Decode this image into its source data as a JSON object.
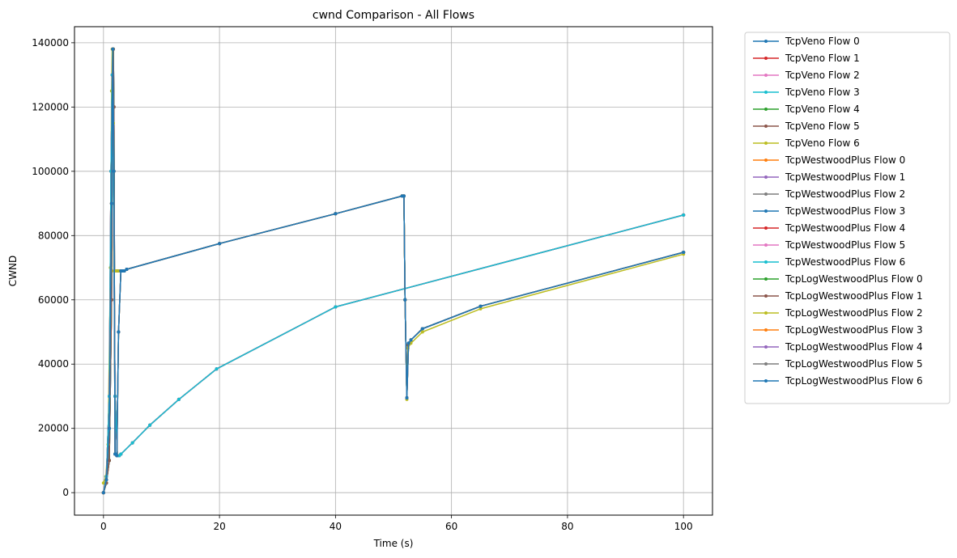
{
  "chart_data": {
    "type": "line",
    "title": "cwnd Comparison - All Flows",
    "xlabel": "Time (s)",
    "ylabel": "CWND",
    "xlim": [
      -5,
      105
    ],
    "ylim": [
      -7000,
      145000
    ],
    "xticks": [
      0,
      20,
      40,
      60,
      80,
      100
    ],
    "yticks": [
      0,
      20000,
      40000,
      60000,
      80000,
      100000,
      120000,
      140000
    ],
    "xtick_labels": [
      "0",
      "20",
      "40",
      "60",
      "80",
      "100"
    ],
    "ytick_labels": [
      "0",
      "20000",
      "40000",
      "60000",
      "80000",
      "100000",
      "120000",
      "140000"
    ],
    "grid": true,
    "legend_position": "outside-right",
    "series": [
      {
        "name": "TcpVeno Flow 0",
        "color": "#1f77b4",
        "x": [
          0,
          0.5,
          1.0,
          1.4,
          1.5,
          1.6,
          1.7,
          1.8,
          1.9,
          2.0,
          2.2,
          2.6,
          3.0,
          3.5,
          4.0,
          20,
          40,
          51.5,
          51.8,
          52.0,
          52.3,
          52.5,
          53,
          55,
          65,
          100
        ],
        "y": [
          0,
          3000,
          10000,
          60000,
          110000,
          138000,
          138000,
          120000,
          69000,
          69000,
          69000,
          69000,
          69000,
          69000,
          69500,
          77500,
          86800,
          92300,
          92300,
          60000,
          29500,
          46000,
          47500,
          51000,
          58000,
          74800
        ]
      },
      {
        "name": "TcpVeno Flow 1",
        "color": "#d62728",
        "x": [
          0,
          0.5,
          1.0,
          1.4,
          1.5,
          1.6,
          1.7,
          1.8,
          1.9,
          2.0,
          2.2,
          2.6,
          3.0,
          3.5,
          4.0,
          20,
          40,
          51.5,
          51.8,
          52.0,
          52.3,
          52.5,
          53,
          55,
          65,
          100
        ],
        "y": [
          0,
          3000,
          10000,
          60000,
          110000,
          138000,
          138000,
          120000,
          69000,
          69000,
          69000,
          69000,
          69000,
          69000,
          69500,
          77500,
          86800,
          92300,
          92300,
          60000,
          29500,
          46000,
          47500,
          51000,
          58000,
          74800
        ]
      },
      {
        "name": "TcpVeno Flow 2",
        "color": "#e377c2",
        "x": [
          0,
          0.5,
          1.0,
          1.4,
          1.5,
          1.6,
          1.7,
          1.8,
          1.9,
          2.0,
          2.2,
          2.6,
          3.0,
          3.5,
          4.0,
          20,
          40,
          51.5,
          51.8,
          52.0,
          52.3,
          52.5,
          53,
          55,
          65,
          100
        ],
        "y": [
          0,
          3000,
          10000,
          60000,
          110000,
          138000,
          138000,
          120000,
          69000,
          69000,
          69000,
          69000,
          69000,
          69000,
          69500,
          77500,
          86800,
          92300,
          92300,
          60000,
          29500,
          46000,
          47500,
          51000,
          58000,
          74800
        ]
      },
      {
        "name": "TcpVeno Flow 3",
        "color": "#17becf",
        "x": [
          0,
          0.5,
          1.0,
          1.4,
          1.5,
          1.6,
          1.7,
          1.8,
          1.9,
          2.0,
          2.2,
          2.6,
          3.0,
          3.5,
          4.0,
          20,
          40,
          51.5,
          51.8,
          52.0,
          52.3,
          52.5,
          53,
          55,
          65,
          100
        ],
        "y": [
          0,
          3000,
          10000,
          60000,
          110000,
          138000,
          138000,
          120000,
          69000,
          69000,
          69000,
          69000,
          69000,
          69000,
          69500,
          77500,
          86800,
          92300,
          92300,
          60000,
          29500,
          46000,
          47500,
          51000,
          58000,
          74800
        ]
      },
      {
        "name": "TcpVeno Flow 4",
        "color": "#2ca02c",
        "x": [
          0,
          0.5,
          1.0,
          1.4,
          1.5,
          1.6,
          1.7,
          1.8,
          1.9,
          2.0,
          2.2,
          2.6,
          3.0,
          3.5,
          4.0,
          20,
          40,
          51.5,
          51.8,
          52.0,
          52.3,
          52.5,
          53,
          55,
          65,
          100
        ],
        "y": [
          0,
          3000,
          10000,
          60000,
          110000,
          138000,
          138000,
          120000,
          69000,
          69000,
          69000,
          69000,
          69000,
          69000,
          69500,
          77500,
          86800,
          92300,
          92300,
          60000,
          29500,
          46000,
          47500,
          51000,
          58000,
          74800
        ]
      },
      {
        "name": "TcpVeno Flow 5",
        "color": "#8c564b",
        "x": [
          0,
          0.5,
          1.0,
          1.4,
          1.5,
          1.6,
          1.7,
          1.8,
          1.9,
          2.0,
          2.2,
          2.6,
          3.0,
          3.5,
          4.0,
          20,
          40,
          51.5,
          51.8,
          52.0,
          52.3,
          52.5,
          53,
          55,
          65,
          100
        ],
        "y": [
          0,
          3000,
          10000,
          60000,
          110000,
          138000,
          138000,
          120000,
          69000,
          69000,
          69000,
          69000,
          69000,
          69000,
          69500,
          77500,
          86800,
          92300,
          92300,
          60000,
          29500,
          46000,
          47500,
          51000,
          58000,
          74800
        ]
      },
      {
        "name": "TcpVeno Flow 6",
        "color": "#bcbd22",
        "x": [
          0,
          0.4,
          0.8,
          1.2,
          1.4,
          1.5,
          1.6,
          1.7,
          1.8,
          1.9,
          2.2,
          2.6,
          3.0,
          3.5,
          4.0,
          20,
          40,
          51.5,
          51.8,
          52.0,
          52.3,
          52.5,
          53,
          55,
          65,
          100
        ],
        "y": [
          3000,
          5000,
          15000,
          70000,
          125000,
          138000,
          138000,
          115000,
          69000,
          69000,
          69000,
          69000,
          69000,
          69000,
          69500,
          77500,
          86800,
          92300,
          92300,
          60000,
          29000,
          45000,
          46500,
          50000,
          57200,
          74200
        ]
      },
      {
        "name": "TcpWestwoodPlus Flow 0",
        "color": "#ff7f0e",
        "x": [
          0,
          0.5,
          1.0,
          1.3,
          1.5,
          1.7,
          2.0,
          2.4,
          2.7,
          3,
          5,
          8,
          13,
          19.5,
          40,
          100
        ],
        "y": [
          0,
          5000,
          30000,
          100000,
          130000,
          100000,
          30000,
          11500,
          11500,
          12000,
          15500,
          21000,
          29000,
          38500,
          57800,
          86400
        ]
      },
      {
        "name": "TcpWestwoodPlus Flow 1",
        "color": "#9467bd",
        "x": [
          0,
          0.5,
          1.0,
          1.3,
          1.5,
          1.7,
          2.0,
          2.4,
          2.7,
          3,
          5,
          8,
          13,
          19.5,
          40,
          100
        ],
        "y": [
          0,
          5000,
          30000,
          100000,
          130000,
          100000,
          30000,
          11500,
          11500,
          12000,
          15500,
          21000,
          29000,
          38500,
          57800,
          86400
        ]
      },
      {
        "name": "TcpWestwoodPlus Flow 2",
        "color": "#7f7f7f",
        "x": [
          0,
          0.5,
          1.0,
          1.3,
          1.5,
          1.7,
          2.0,
          2.4,
          2.7,
          3,
          5,
          8,
          13,
          19.5,
          40,
          100
        ],
        "y": [
          0,
          5000,
          30000,
          100000,
          130000,
          100000,
          30000,
          11500,
          11500,
          12000,
          15500,
          21000,
          29000,
          38500,
          57800,
          86400
        ]
      },
      {
        "name": "TcpWestwoodPlus Flow 3",
        "color": "#1f77b4",
        "x": [
          0,
          0.5,
          1.0,
          1.3,
          1.5,
          1.7,
          2.0,
          2.4,
          2.7,
          3,
          5,
          8,
          13,
          19.5,
          40,
          100
        ],
        "y": [
          0,
          5000,
          30000,
          100000,
          130000,
          100000,
          30000,
          11500,
          11500,
          12000,
          15500,
          21000,
          29000,
          38500,
          57800,
          86400
        ]
      },
      {
        "name": "TcpWestwoodPlus Flow 4",
        "color": "#d62728",
        "x": [
          0,
          0.5,
          1.0,
          1.3,
          1.5,
          1.7,
          2.0,
          2.4,
          2.7,
          3,
          5,
          8,
          13,
          19.5,
          40,
          100
        ],
        "y": [
          0,
          5000,
          30000,
          100000,
          130000,
          100000,
          30000,
          11500,
          11500,
          12000,
          15500,
          21000,
          29000,
          38500,
          57800,
          86400
        ]
      },
      {
        "name": "TcpWestwoodPlus Flow 5",
        "color": "#e377c2",
        "x": [
          0,
          0.5,
          1.0,
          1.3,
          1.5,
          1.7,
          2.0,
          2.4,
          2.7,
          3,
          5,
          8,
          13,
          19.5,
          40,
          100
        ],
        "y": [
          0,
          5000,
          30000,
          100000,
          130000,
          100000,
          30000,
          11500,
          11500,
          12000,
          15500,
          21000,
          29000,
          38500,
          57800,
          86400
        ]
      },
      {
        "name": "TcpWestwoodPlus Flow 6",
        "color": "#17becf",
        "x": [
          0,
          0.5,
          1.0,
          1.3,
          1.5,
          1.7,
          2.0,
          2.4,
          2.7,
          3,
          5,
          8,
          13,
          19.5,
          40,
          100
        ],
        "y": [
          0,
          5000,
          30000,
          100000,
          130000,
          100000,
          30000,
          11500,
          11500,
          12000,
          15500,
          21000,
          29000,
          38500,
          57800,
          86400
        ]
      },
      {
        "name": "TcpLogWestwoodPlus Flow 0",
        "color": "#2ca02c",
        "x": [
          0,
          0.5,
          1.0,
          1.4,
          1.6,
          1.8,
          2.0,
          2.3,
          2.6,
          3.0,
          3.3,
          3.6,
          4.0,
          20,
          40,
          51.5,
          51.8,
          52.0,
          52.3,
          52.6,
          53,
          55,
          65,
          100
        ],
        "y": [
          0,
          4000,
          20000,
          90000,
          138000,
          100000,
          12000,
          11500,
          50000,
          69000,
          69000,
          69000,
          69500,
          77500,
          86800,
          92300,
          92300,
          60000,
          29500,
          46500,
          47500,
          51000,
          58000,
          74800
        ]
      },
      {
        "name": "TcpLogWestwoodPlus Flow 1",
        "color": "#8c564b",
        "x": [
          0,
          0.5,
          1.0,
          1.4,
          1.6,
          1.8,
          2.0,
          2.3,
          2.6,
          3.0,
          3.3,
          3.6,
          4.0,
          20,
          40,
          51.5,
          51.8,
          52.0,
          52.3,
          52.6,
          53,
          55,
          65,
          100
        ],
        "y": [
          0,
          4000,
          20000,
          90000,
          138000,
          100000,
          12000,
          11500,
          50000,
          69000,
          69000,
          69000,
          69500,
          77500,
          86800,
          92300,
          92300,
          60000,
          29500,
          46500,
          47500,
          51000,
          58000,
          74800
        ]
      },
      {
        "name": "TcpLogWestwoodPlus Flow 2",
        "color": "#bcbd22",
        "x": [
          0,
          0.5,
          1.0,
          1.4,
          1.6,
          1.8,
          2.0,
          2.3,
          2.6,
          3.0,
          3.3,
          3.6,
          4.0,
          20,
          40,
          51.5,
          51.8,
          52.0,
          52.3,
          52.6,
          53,
          55,
          65,
          100
        ],
        "y": [
          0,
          4000,
          20000,
          90000,
          138000,
          100000,
          12000,
          11500,
          50000,
          69000,
          69000,
          69000,
          69500,
          77500,
          86800,
          92300,
          92300,
          60000,
          29500,
          46500,
          47500,
          51000,
          58000,
          74800
        ]
      },
      {
        "name": "TcpLogWestwoodPlus Flow 3",
        "color": "#ff7f0e",
        "x": [
          0,
          0.5,
          1.0,
          1.4,
          1.6,
          1.8,
          2.0,
          2.3,
          2.6,
          3.0,
          3.3,
          3.6,
          4.0,
          20,
          40,
          51.5,
          51.8,
          52.0,
          52.3,
          52.6,
          53,
          55,
          65,
          100
        ],
        "y": [
          0,
          4000,
          20000,
          90000,
          138000,
          100000,
          12000,
          11500,
          50000,
          69000,
          69000,
          69000,
          69500,
          77500,
          86800,
          92300,
          92300,
          60000,
          29500,
          46500,
          47500,
          51000,
          58000,
          74800
        ]
      },
      {
        "name": "TcpLogWestwoodPlus Flow 4",
        "color": "#9467bd",
        "x": [
          0,
          0.5,
          1.0,
          1.4,
          1.6,
          1.8,
          2.0,
          2.3,
          2.6,
          3.0,
          3.3,
          3.6,
          4.0,
          20,
          40,
          51.5,
          51.8,
          52.0,
          52.3,
          52.6,
          53,
          55,
          65,
          100
        ],
        "y": [
          0,
          4000,
          20000,
          90000,
          138000,
          100000,
          12000,
          11500,
          50000,
          69000,
          69000,
          69000,
          69500,
          77500,
          86800,
          92300,
          92300,
          60000,
          29500,
          46500,
          47500,
          51000,
          58000,
          74800
        ]
      },
      {
        "name": "TcpLogWestwoodPlus Flow 5",
        "color": "#7f7f7f",
        "x": [
          0,
          0.5,
          1.0,
          1.4,
          1.6,
          1.8,
          2.0,
          2.3,
          2.6,
          3.0,
          3.3,
          3.6,
          4.0,
          20,
          40,
          51.5,
          51.8,
          52.0,
          52.3,
          52.6,
          53,
          55,
          65,
          100
        ],
        "y": [
          0,
          4000,
          20000,
          90000,
          138000,
          100000,
          12000,
          11500,
          50000,
          69000,
          69000,
          69000,
          69500,
          77500,
          86800,
          92300,
          92300,
          60000,
          29500,
          46500,
          47500,
          51000,
          58000,
          74800
        ]
      },
      {
        "name": "TcpLogWestwoodPlus Flow 6",
        "color": "#1f77b4",
        "x": [
          0,
          0.5,
          1.0,
          1.4,
          1.6,
          1.8,
          2.0,
          2.3,
          2.6,
          3.0,
          3.3,
          3.6,
          4.0,
          20,
          40,
          51.5,
          51.8,
          52.0,
          52.3,
          52.6,
          53,
          55,
          65,
          100
        ],
        "y": [
          0,
          4000,
          20000,
          90000,
          138000,
          100000,
          12000,
          11500,
          50000,
          69000,
          69000,
          69000,
          69500,
          77500,
          86800,
          92300,
          92300,
          60000,
          29500,
          46500,
          47500,
          51000,
          58000,
          74800
        ]
      }
    ]
  }
}
